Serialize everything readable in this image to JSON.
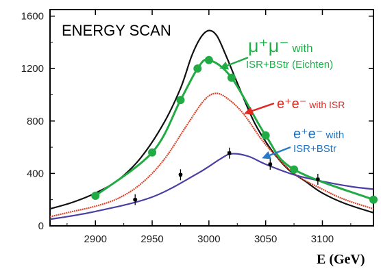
{
  "chart_data": {
    "type": "line",
    "title": "ENERGY SCAN",
    "xlabel": "E (GeV)",
    "ylabel": "",
    "xlim": [
      2860,
      3145
    ],
    "ylim": [
      0,
      1650
    ],
    "xticks": [
      2900,
      2950,
      3000,
      3050,
      3100
    ],
    "yticks": [
      0,
      400,
      800,
      1200,
      1600
    ],
    "grid": false,
    "colors": {
      "black": "#111111",
      "red": "#d9442b",
      "blue": "#4a3fa3",
      "green": "#22aa44",
      "green_label": "#1fae4a",
      "red_label": "#e0281e",
      "blue_label": "#1a73c8",
      "red_arrow": "#e0281e",
      "blue_arrow": "#2a78c8"
    },
    "series": [
      {
        "x": [
          2860,
          2880,
          2900,
          2920,
          2940,
          2960,
          2975,
          2985,
          2993,
          3000,
          3007,
          3015,
          3025,
          3040,
          3055,
          3070,
          3085,
          3100,
          3120,
          3145
        ],
        "y": [
          130,
          180,
          250,
          350,
          520,
          780,
          1050,
          1300,
          1440,
          1490,
          1450,
          1300,
          1090,
          790,
          580,
          430,
          340,
          250,
          170,
          100
        ]
      },
      {
        "x": [
          2860,
          2880,
          2900,
          2920,
          2940,
          2960,
          2980,
          2995,
          3005,
          3015,
          3030,
          3050,
          3075,
          3100,
          3120,
          3145
        ],
        "y": [
          70,
          110,
          150,
          210,
          320,
          500,
          760,
          950,
          1010,
          980,
          860,
          620,
          400,
          280,
          200,
          130
        ]
      },
      {
        "x": [
          2860,
          2900,
          2950,
          2990,
          3010,
          3020,
          3035,
          3050,
          3075,
          3100,
          3125,
          3145
        ],
        "y": [
          50,
          110,
          220,
          400,
          510,
          550,
          530,
          470,
          390,
          340,
          300,
          280
        ]
      },
      {
        "x": [
          2900,
          2950,
          2975,
          2990,
          3000,
          3020,
          3050,
          3075,
          3145
        ],
        "y": [
          230,
          560,
          960,
          1200,
          1265,
          1130,
          690,
          430,
          200
        ]
      }
    ],
    "error_points": [
      {
        "x": 2935,
        "y": 200
      },
      {
        "x": 2975,
        "y": 390
      },
      {
        "x": 3018,
        "y": 555
      },
      {
        "x": 3054,
        "y": 470
      },
      {
        "x": 3096,
        "y": 355
      }
    ],
    "annotations": {
      "mumu": {
        "main": "μ⁺μ⁻",
        "with": " with",
        "line2": "ISR+BStr (Eichten)"
      },
      "ee_isr": {
        "main": "e⁺e⁻",
        "rest": " with ISR"
      },
      "ee_isr_bstr": {
        "main": "e⁺e⁻",
        "with": " with",
        "line2": "ISR+BStr"
      }
    }
  }
}
